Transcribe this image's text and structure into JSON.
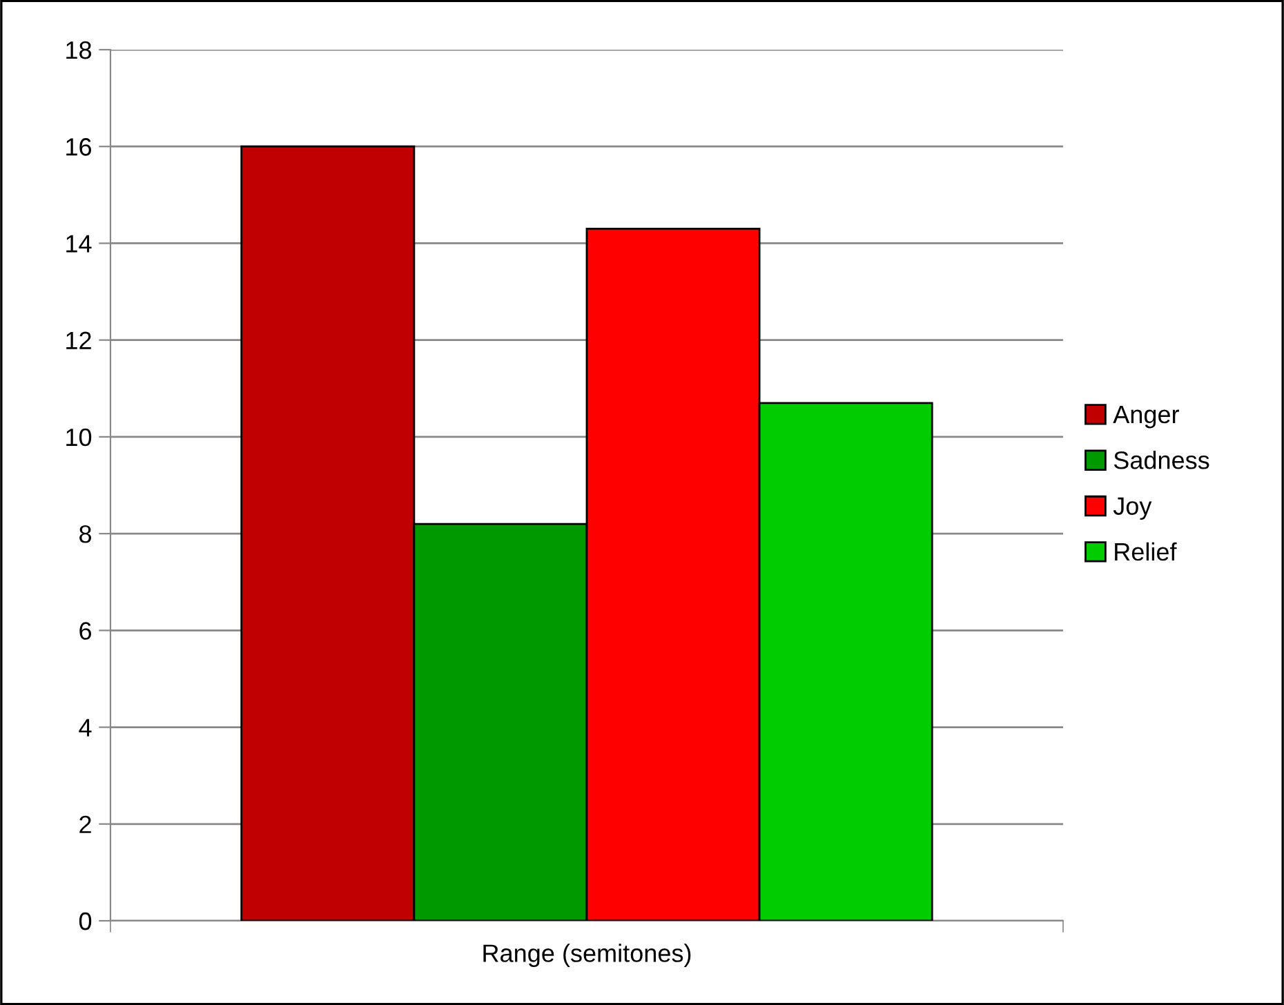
{
  "chart_data": {
    "type": "bar",
    "categories": [
      "Range (semitones)"
    ],
    "series": [
      {
        "name": "Anger",
        "color": "#c00000",
        "values": [
          16
        ]
      },
      {
        "name": "Sadness",
        "color": "#009900",
        "values": [
          8.2
        ]
      },
      {
        "name": "Joy",
        "color": "#ff0000",
        "values": [
          14.3
        ]
      },
      {
        "name": "Relief",
        "color": "#00cc00",
        "values": [
          10.7
        ]
      }
    ],
    "ylim": [
      0,
      18
    ],
    "yticks": [
      0,
      2,
      4,
      6,
      8,
      10,
      12,
      14,
      16,
      18
    ],
    "grid": "y",
    "legend": "right"
  }
}
